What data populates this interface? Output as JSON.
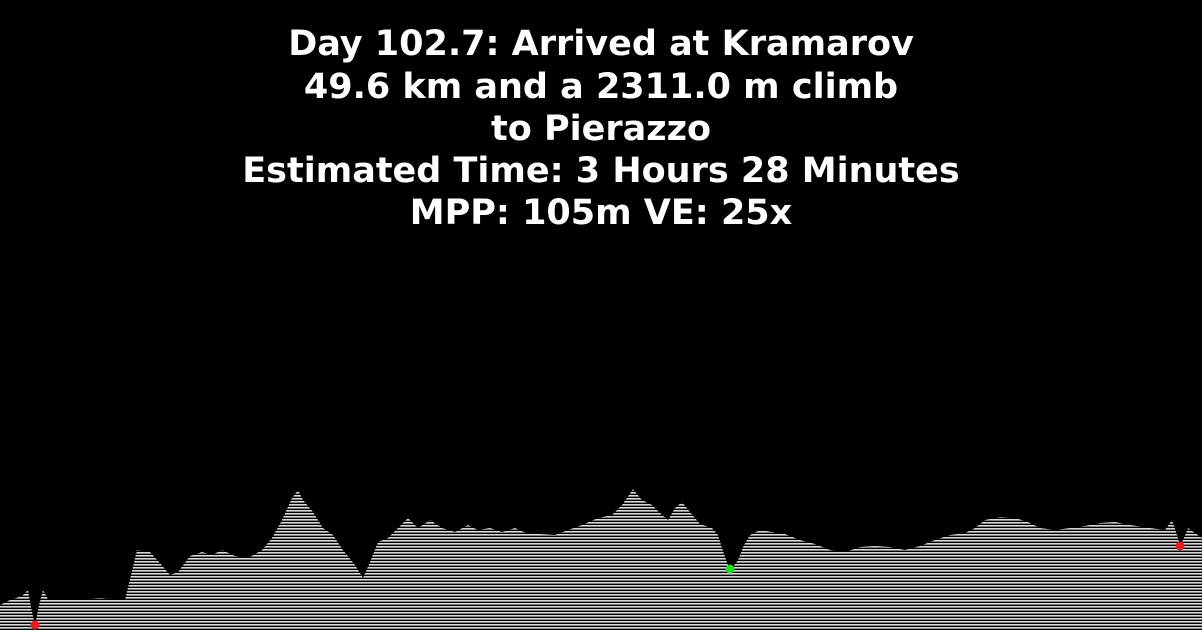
{
  "header": {
    "line1": "Day 102.7: Arrived at Kramarov",
    "line2": "49.6 km and a 2311.0 m climb",
    "line3": "to Pierazzo",
    "line4": "Estimated Time: 3 Hours 28 Minutes",
    "line5": "MPP: 105m VE: 25x"
  },
  "colors": {
    "background": "#000000",
    "text": "#ffffff",
    "terrain": "#e6e6e6",
    "marker_start": "#e02020",
    "marker_mid": "#22dd22",
    "marker_end": "#e02020"
  },
  "markers": [
    {
      "name": "start-marker",
      "color_key": "marker_start"
    },
    {
      "name": "waypoint-marker",
      "color_key": "marker_mid"
    },
    {
      "name": "end-marker",
      "color_key": "marker_end"
    }
  ]
}
